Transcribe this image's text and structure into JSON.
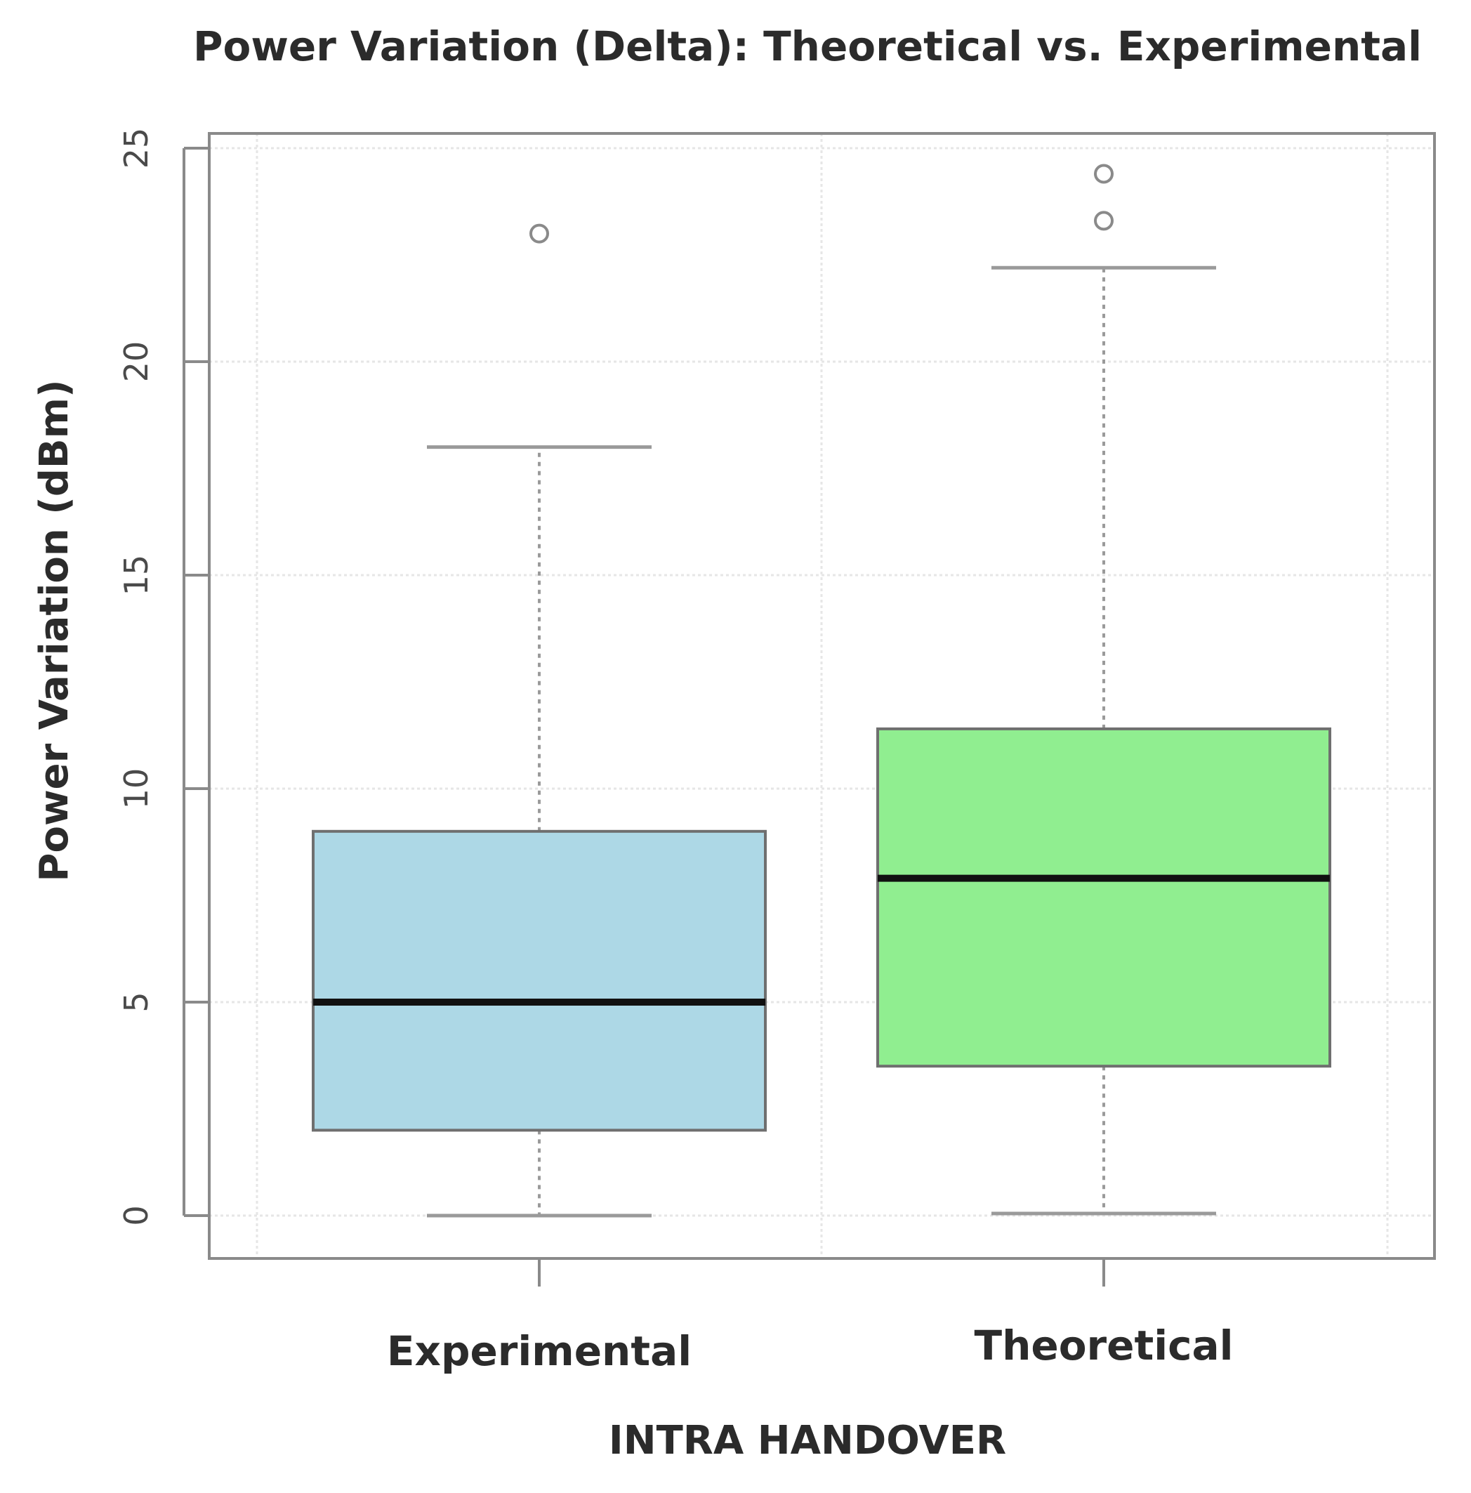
{
  "chart_data": {
    "type": "boxplot",
    "title": "Power Variation (Delta): Theoretical vs. Experimental",
    "xlabel": "INTRA HANDOVER",
    "ylabel": "Power Variation (dBm)",
    "ylim": [
      -1,
      25.3
    ],
    "yticks": [
      0,
      5,
      10,
      15,
      20,
      25
    ],
    "grid": true,
    "categories": [
      "Experimental",
      "Theoretical"
    ],
    "boxes": [
      {
        "name": "Experimental",
        "whisker_low": 0,
        "q1": 2,
        "median": 5,
        "q3": 9,
        "whisker_high": 18,
        "outliers": [
          23
        ],
        "color": "#add8e6"
      },
      {
        "name": "Theoretical",
        "whisker_low": 0.05,
        "q1": 3.5,
        "median": 7.9,
        "q3": 11.4,
        "whisker_high": 22.2,
        "outliers": [
          23.3,
          24.4
        ],
        "color": "#90ee90"
      }
    ]
  }
}
